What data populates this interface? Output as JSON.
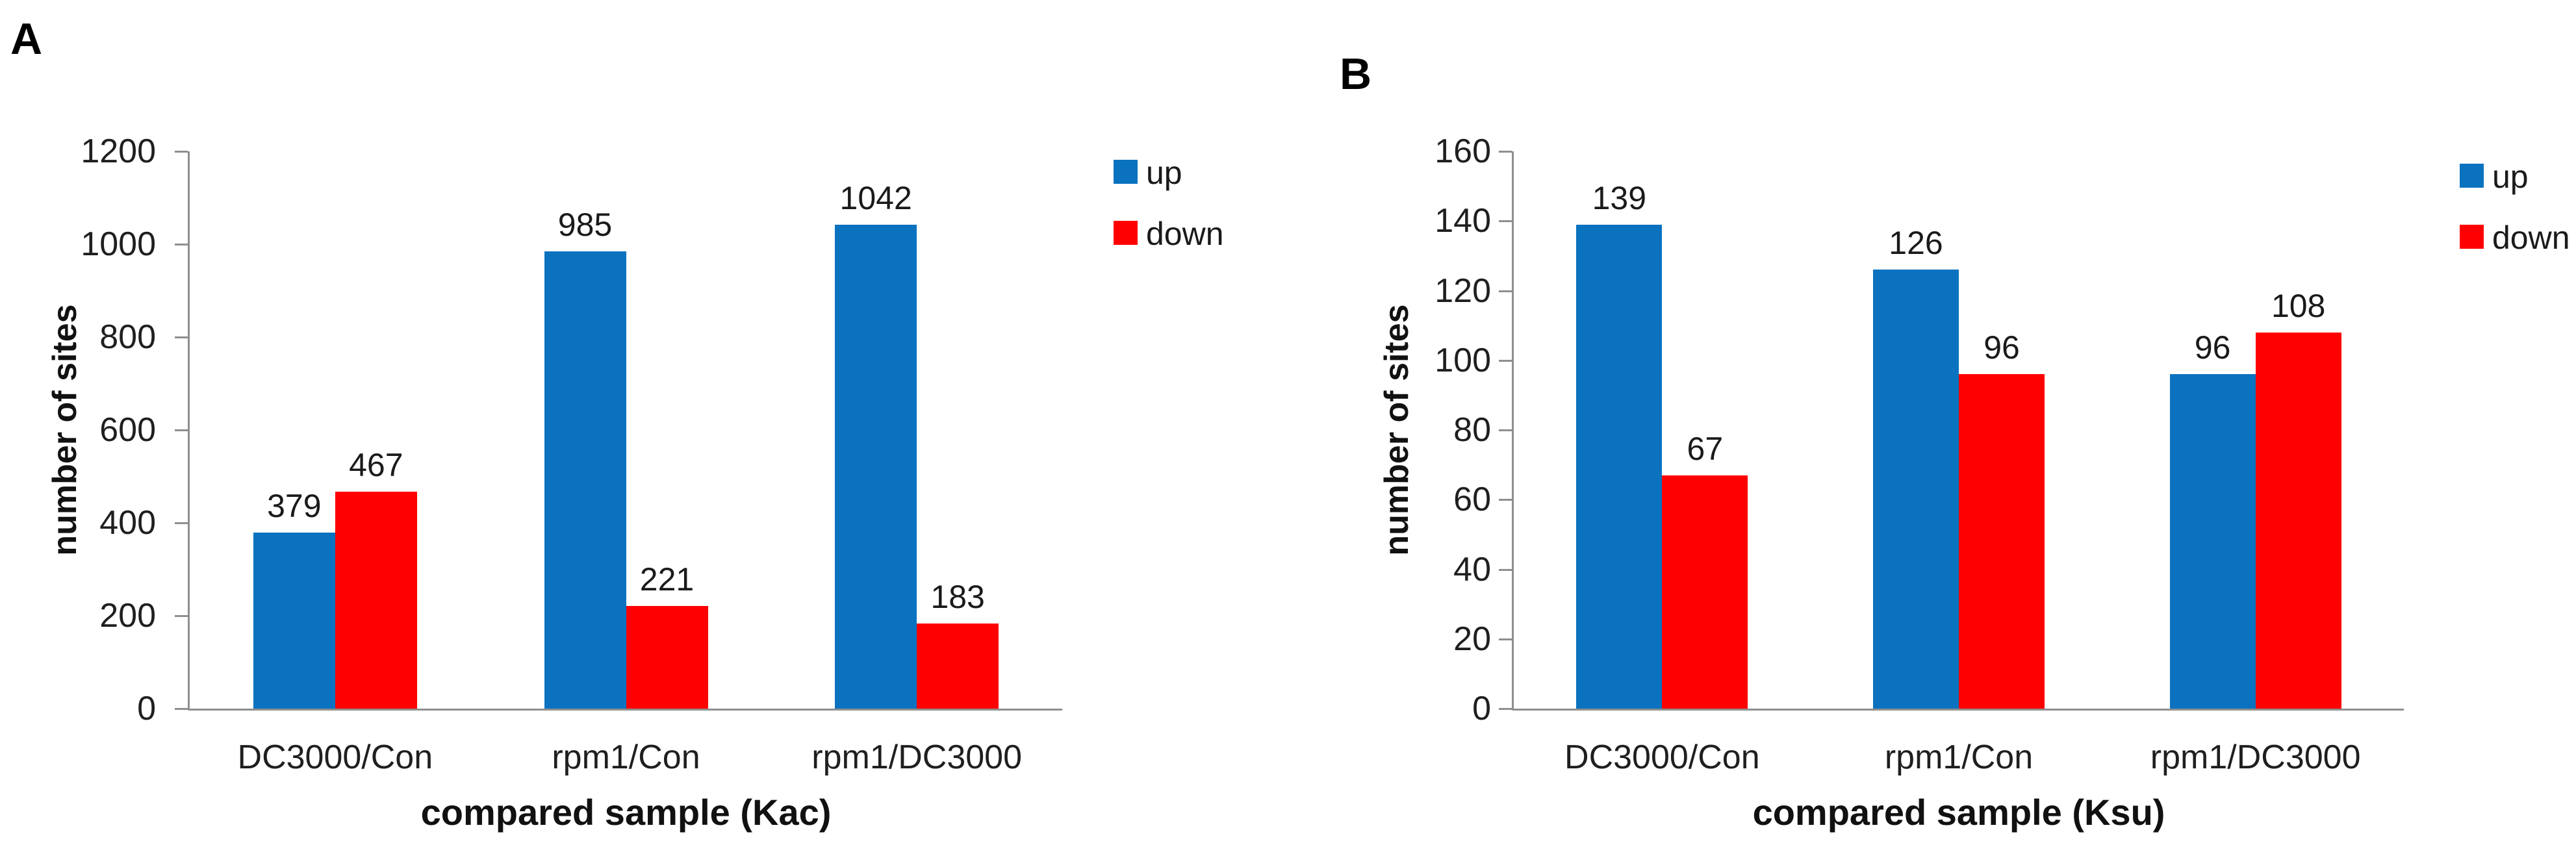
{
  "figure": {
    "background_color": "#ffffff",
    "axis_color": "#8f8f8f",
    "text_color": "#1a1a1a"
  },
  "chart_data": [
    {
      "type": "bar",
      "panel_label": "A",
      "title": "",
      "xlabel": "compared sample (Kac)",
      "ylabel": "number of sites",
      "categories": [
        "DC3000/Con",
        "rpm1/Con",
        "rpm1/DC3000"
      ],
      "series": [
        {
          "name": "up",
          "color": "#0B72C0",
          "values": [
            379,
            985,
            1042
          ]
        },
        {
          "name": "down",
          "color": "#FE0000",
          "values": [
            467,
            221,
            183
          ]
        }
      ],
      "ylim": [
        0,
        1200
      ],
      "ytick_step": 200,
      "ytick_labels": [
        "0",
        "200",
        "400",
        "600",
        "800",
        "1000",
        "1200"
      ],
      "bar_value_labels": [
        [
          "379",
          "467"
        ],
        [
          "985",
          "221"
        ],
        [
          "1042",
          "183"
        ]
      ],
      "legend": [
        "up",
        "down"
      ],
      "legend_position": "right",
      "grid": false
    },
    {
      "type": "bar",
      "panel_label": "B",
      "title": "",
      "xlabel": "compared sample (Ksu)",
      "ylabel": "number of sites",
      "categories": [
        "DC3000/Con",
        "rpm1/Con",
        "rpm1/DC3000"
      ],
      "series": [
        {
          "name": "up",
          "color": "#0B72C0",
          "values": [
            139,
            126,
            96
          ]
        },
        {
          "name": "down",
          "color": "#FE0000",
          "values": [
            67,
            96,
            108
          ]
        }
      ],
      "ylim": [
        0,
        160
      ],
      "ytick_step": 20,
      "ytick_labels": [
        "0",
        "20",
        "40",
        "60",
        "80",
        "100",
        "120",
        "140",
        "160"
      ],
      "bar_value_labels": [
        [
          "139",
          "67"
        ],
        [
          "126",
          "96"
        ],
        [
          "96",
          "108"
        ]
      ],
      "legend": [
        "up",
        "down"
      ],
      "legend_position": "right",
      "grid": false
    }
  ]
}
